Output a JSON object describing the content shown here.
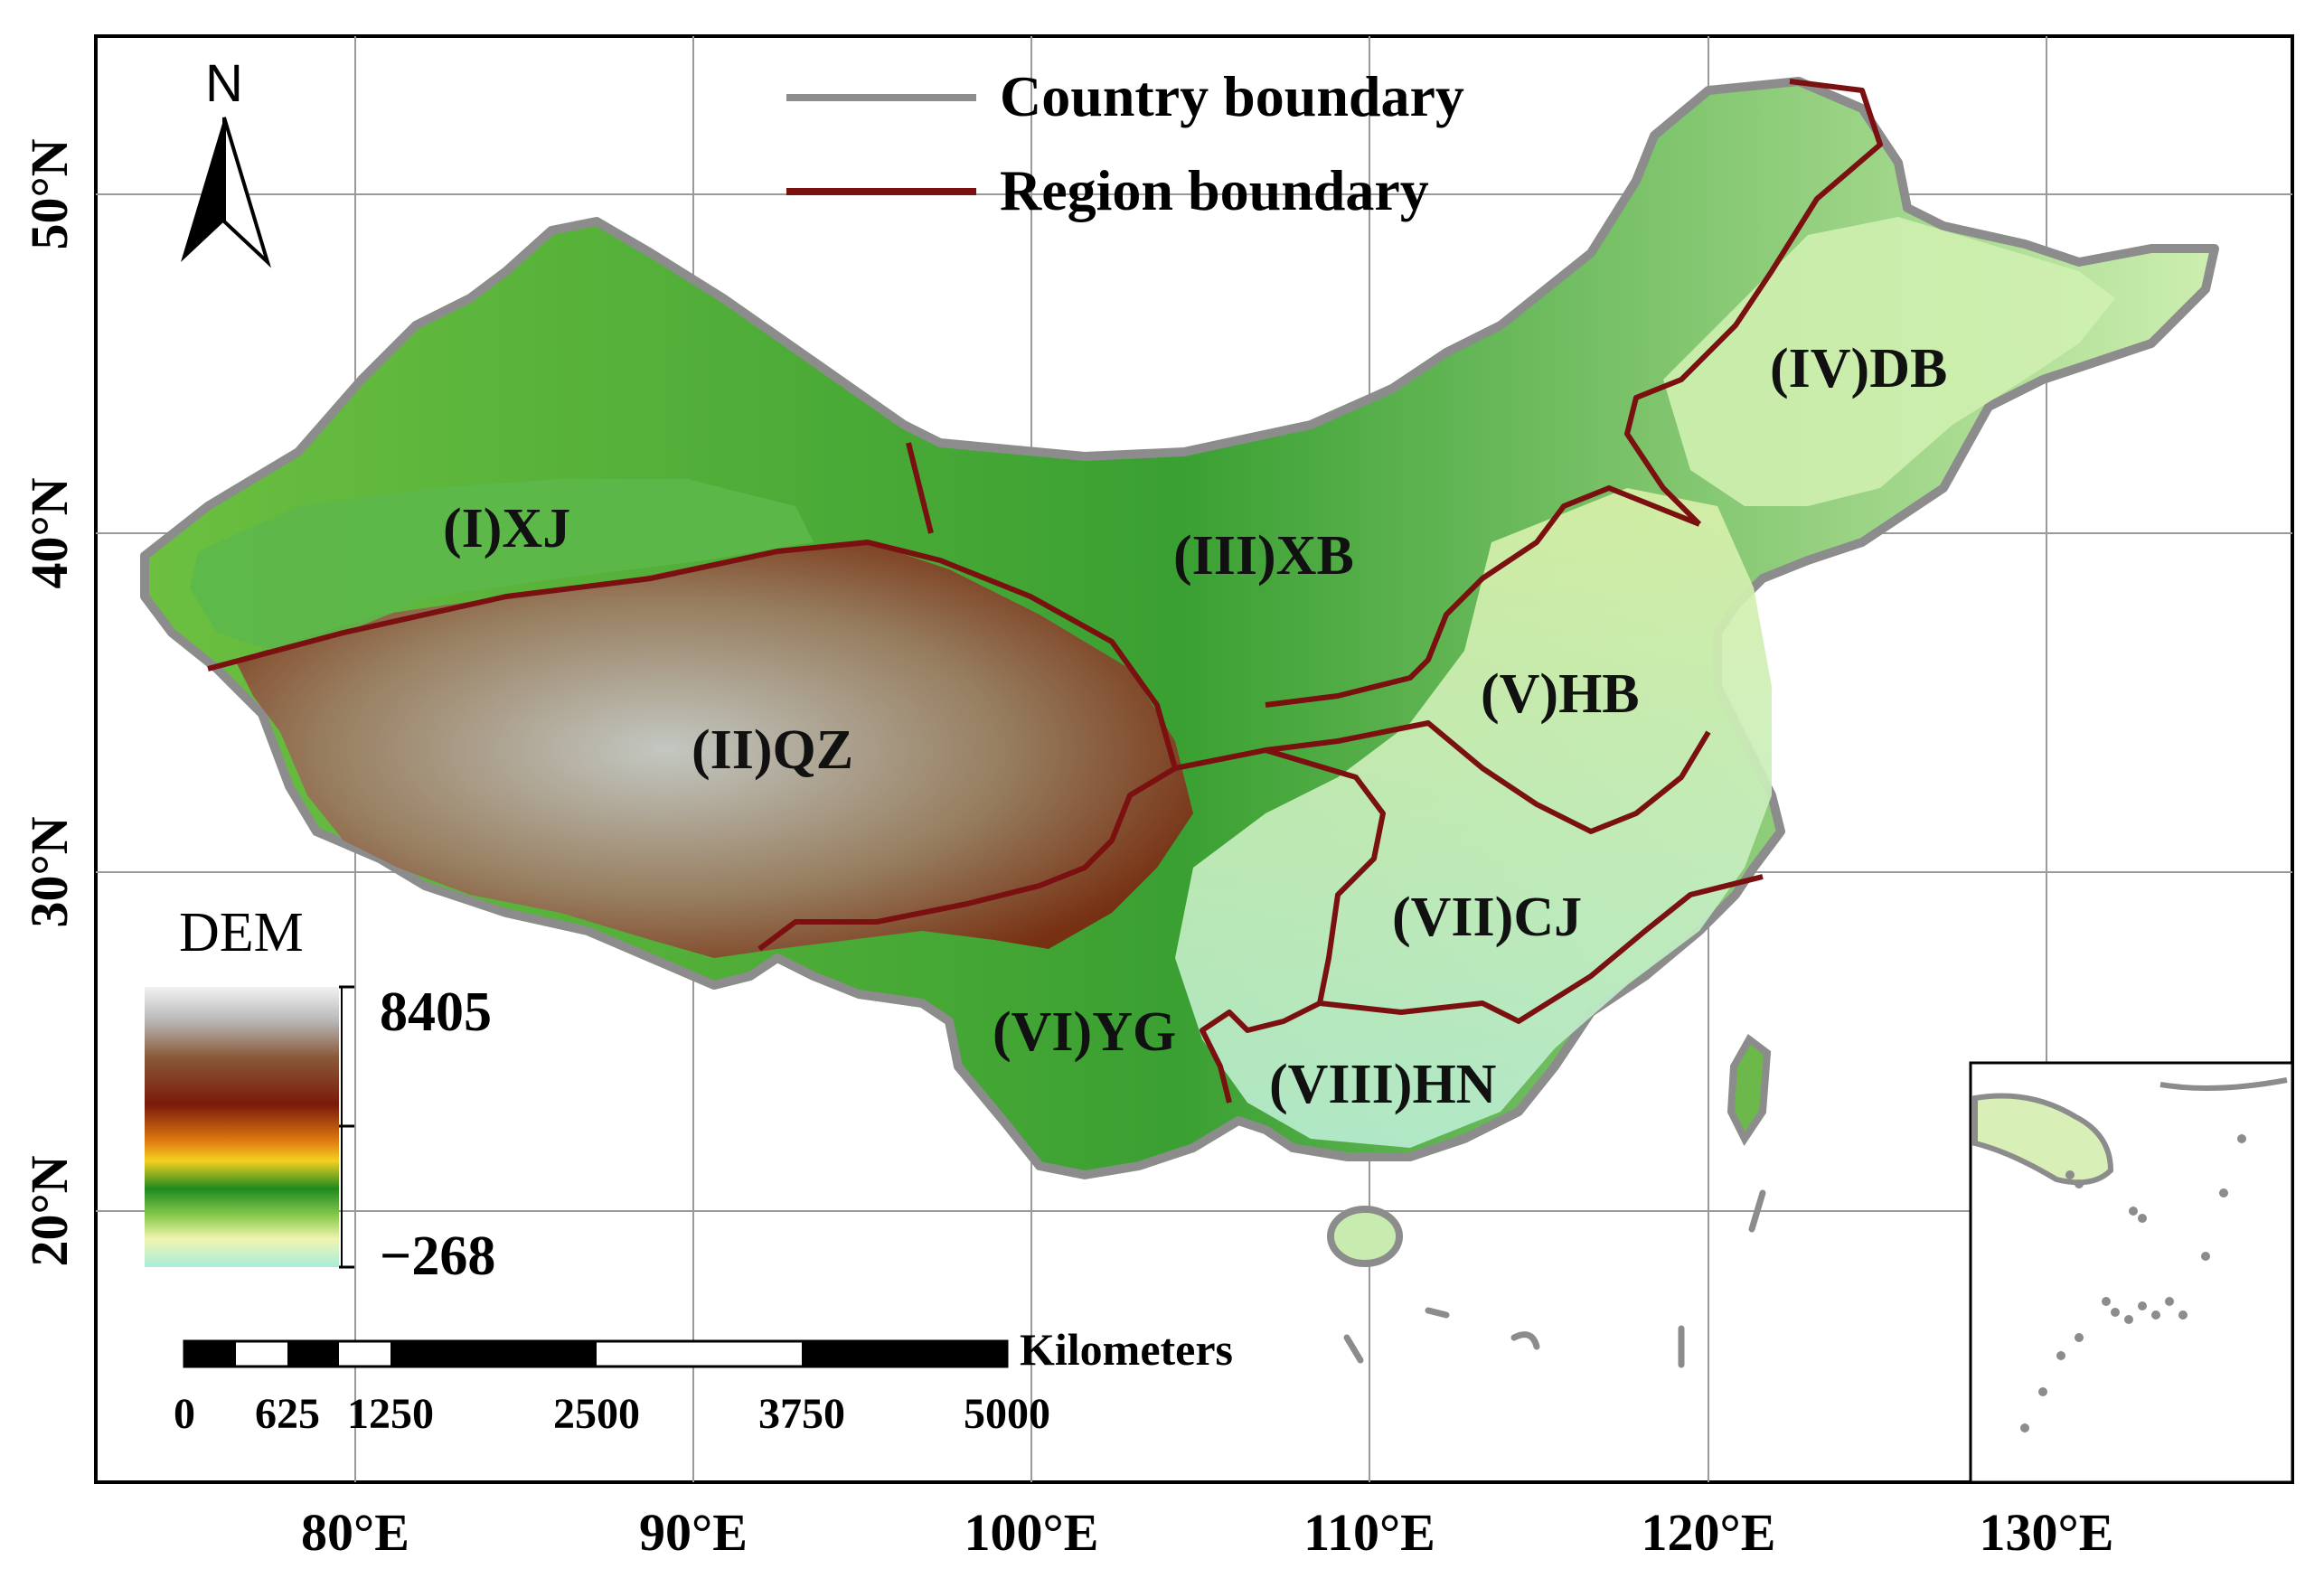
{
  "legend": {
    "country_boundary_label": "Country boundary",
    "region_boundary_label": "Region boundary",
    "country_boundary_color": "#8c8c8c",
    "region_boundary_color": "#7a1010"
  },
  "north_arrow": {
    "label": "N"
  },
  "dem": {
    "title": "DEM",
    "max": "8405",
    "min": "−268",
    "colors": [
      "#f2f2f2",
      "#b8b8b8",
      "#8a5a3a",
      "#7a1a0a",
      "#e07a10",
      "#f5d020",
      "#1e8a1e",
      "#8ccc50",
      "#f0f5b0",
      "#a8ecdc"
    ]
  },
  "scale_bar": {
    "unit": "Kilometers",
    "ticks": [
      "0",
      "625",
      "1250",
      "2500",
      "3750",
      "5000"
    ]
  },
  "axes": {
    "lon_labels": [
      "80°E",
      "90°E",
      "100°E",
      "110°E",
      "120°E",
      "130°E"
    ],
    "lat_labels": [
      "50°N",
      "40°N",
      "30°N",
      "20°N"
    ]
  },
  "regions": [
    {
      "label": "(I)XJ"
    },
    {
      "label": "(II)QZ"
    },
    {
      "label": "(III)XB"
    },
    {
      "label": "(IV)DB"
    },
    {
      "label": "(V)HB"
    },
    {
      "label": "(VI)YG"
    },
    {
      "label": "(VII)CJ"
    },
    {
      "label": "(VIII)HN"
    }
  ]
}
